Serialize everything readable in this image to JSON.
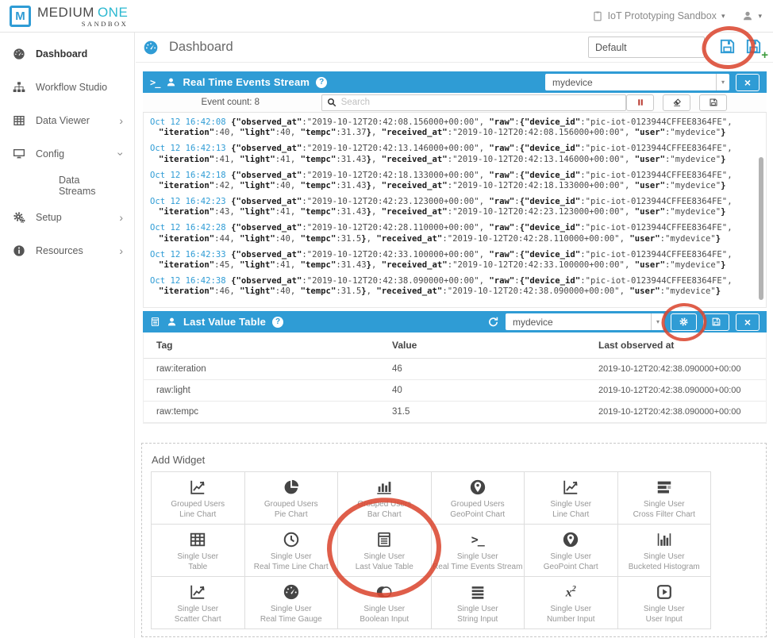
{
  "brand": {
    "logo_letter": "M",
    "name_primary": "MEDIUM",
    "name_accent": "ONE",
    "subtitle": "SANDBOX"
  },
  "topbar": {
    "workspace_label": "IoT Prototyping Sandbox",
    "caret_glyph": "▾"
  },
  "sidebar": {
    "items": [
      {
        "label": "Dashboard",
        "icon": "gauge",
        "active": true
      },
      {
        "label": "Workflow Studio",
        "icon": "sitemap"
      },
      {
        "label": "Data Viewer",
        "icon": "grid",
        "chevron": "chevron-right"
      },
      {
        "label": "Config",
        "icon": "desktop",
        "chevron": "chevron-down"
      },
      {
        "label": "Data Streams",
        "sub": true
      },
      {
        "label": "Setup",
        "icon": "gear",
        "chevron": "chevron-right"
      },
      {
        "label": "Resources",
        "icon": "info",
        "chevron": "chevron-right"
      }
    ]
  },
  "page": {
    "title": "Dashboard",
    "dashboard_name": "Default"
  },
  "events_widget": {
    "title": "Real Time Events Stream",
    "prompt_glyph": ">_",
    "help_glyph": "?",
    "close_glyph": "×",
    "device_selected": "mydevice",
    "caret_glyph": "▾",
    "event_count_label": "Event count: 8",
    "search_placeholder": "Search",
    "controls": [
      {
        "icon": "pause",
        "name": "pause-stream-button",
        "red": true
      },
      {
        "icon": "eraser",
        "name": "clear-stream-button"
      },
      {
        "icon": "floppy",
        "name": "save-stream-button"
      }
    ],
    "device_id": "pic-iot-0123944CFFEE8364FE",
    "entries": [
      {
        "time": "Oct 12 16:42:08",
        "observed_at": "2019-10-12T20:42:08.156000+00:00",
        "iteration": 40,
        "light": 40,
        "tempc": "31.37",
        "received_at": "2019-10-12T20:42:08.156000+00:00",
        "user": "mydevice"
      },
      {
        "time": "Oct 12 16:42:13",
        "observed_at": "2019-10-12T20:42:13.146000+00:00",
        "iteration": 41,
        "light": 41,
        "tempc": "31.43",
        "received_at": "2019-10-12T20:42:13.146000+00:00",
        "user": "mydevice"
      },
      {
        "time": "Oct 12 16:42:18",
        "observed_at": "2019-10-12T20:42:18.133000+00:00",
        "iteration": 42,
        "light": 40,
        "tempc": "31.43",
        "received_at": "2019-10-12T20:42:18.133000+00:00",
        "user": "mydevice"
      },
      {
        "time": "Oct 12 16:42:23",
        "observed_at": "2019-10-12T20:42:23.123000+00:00",
        "iteration": 43,
        "light": 41,
        "tempc": "31.43",
        "received_at": "2019-10-12T20:42:23.123000+00:00",
        "user": "mydevice"
      },
      {
        "time": "Oct 12 16:42:28",
        "observed_at": "2019-10-12T20:42:28.110000+00:00",
        "iteration": 44,
        "light": 40,
        "tempc": "31.5",
        "received_at": "2019-10-12T20:42:28.110000+00:00",
        "user": "mydevice"
      },
      {
        "time": "Oct 12 16:42:33",
        "observed_at": "2019-10-12T20:42:33.100000+00:00",
        "iteration": 45,
        "light": 41,
        "tempc": "31.43",
        "received_at": "2019-10-12T20:42:33.100000+00:00",
        "user": "mydevice"
      },
      {
        "time": "Oct 12 16:42:38",
        "observed_at": "2019-10-12T20:42:38.090000+00:00",
        "iteration": 46,
        "light": 40,
        "tempc": "31.5",
        "received_at": "2019-10-12T20:42:38.090000+00:00",
        "user": "mydevice"
      }
    ]
  },
  "lvt_widget": {
    "title": "Last Value Table",
    "help_glyph": "?",
    "close_glyph": "×",
    "device_selected": "mydevice",
    "caret_glyph": "▾",
    "columns": [
      {
        "label": "Tag"
      },
      {
        "label": "Value"
      },
      {
        "label": "Last observed at"
      }
    ],
    "rows": [
      {
        "tag": "raw:iteration",
        "value": "46",
        "observed": "2019-10-12T20:42:38.090000+00:00"
      },
      {
        "tag": "raw:light",
        "value": "40",
        "observed": "2019-10-12T20:42:38.090000+00:00"
      },
      {
        "tag": "raw:tempc",
        "value": "31.5",
        "observed": "2019-10-12T20:42:38.090000+00:00"
      }
    ]
  },
  "add_widget": {
    "label": "Add Widget",
    "cells": [
      {
        "group": "Grouped Users",
        "name": "Line Chart",
        "icon": "line-chart"
      },
      {
        "group": "Grouped Users",
        "name": "Pie Chart",
        "icon": "pie-chart"
      },
      {
        "group": "Grouped Users",
        "name": "Bar Chart",
        "icon": "bar-chart"
      },
      {
        "group": "Grouped Users",
        "name": "GeoPoint Chart",
        "icon": "geo-chart"
      },
      {
        "group": "Single User",
        "name": "Line Chart",
        "icon": "line-chart"
      },
      {
        "group": "Single User",
        "name": "Cross Filter Chart",
        "icon": "cross-filter"
      },
      {
        "group": "Single User",
        "name": "Table",
        "icon": "table"
      },
      {
        "group": "Single User",
        "name": "Real Time Line Chart",
        "icon": "clock"
      },
      {
        "group": "Single User",
        "name": "Last Value Table",
        "icon": "list-table",
        "circled": true
      },
      {
        "group": "Single User",
        "name": "Real Time Events Stream",
        "icon": "terminal"
      },
      {
        "group": "Single User",
        "name": "GeoPoint Chart",
        "icon": "geo-chart"
      },
      {
        "group": "Single User",
        "name": "Bucketed Histogram",
        "icon": "histogram"
      },
      {
        "group": "Single User",
        "name": "Scatter Chart",
        "icon": "line-chart"
      },
      {
        "group": "Single User",
        "name": "Real Time Gauge",
        "icon": "gauge"
      },
      {
        "group": "Single User",
        "name": "Boolean Input",
        "icon": "toggle"
      },
      {
        "group": "Single User",
        "name": "String Input",
        "icon": "string-lines"
      },
      {
        "group": "Single User",
        "name": "Number Input",
        "icon": "x2"
      },
      {
        "group": "Single User",
        "name": "User Input",
        "icon": "play-square"
      }
    ]
  },
  "colors": {
    "accent_blue": "#2F9CD5",
    "brand_teal": "#2BB8D0",
    "annotation_red": "#DB4831",
    "pause_red": "#B93A30"
  }
}
